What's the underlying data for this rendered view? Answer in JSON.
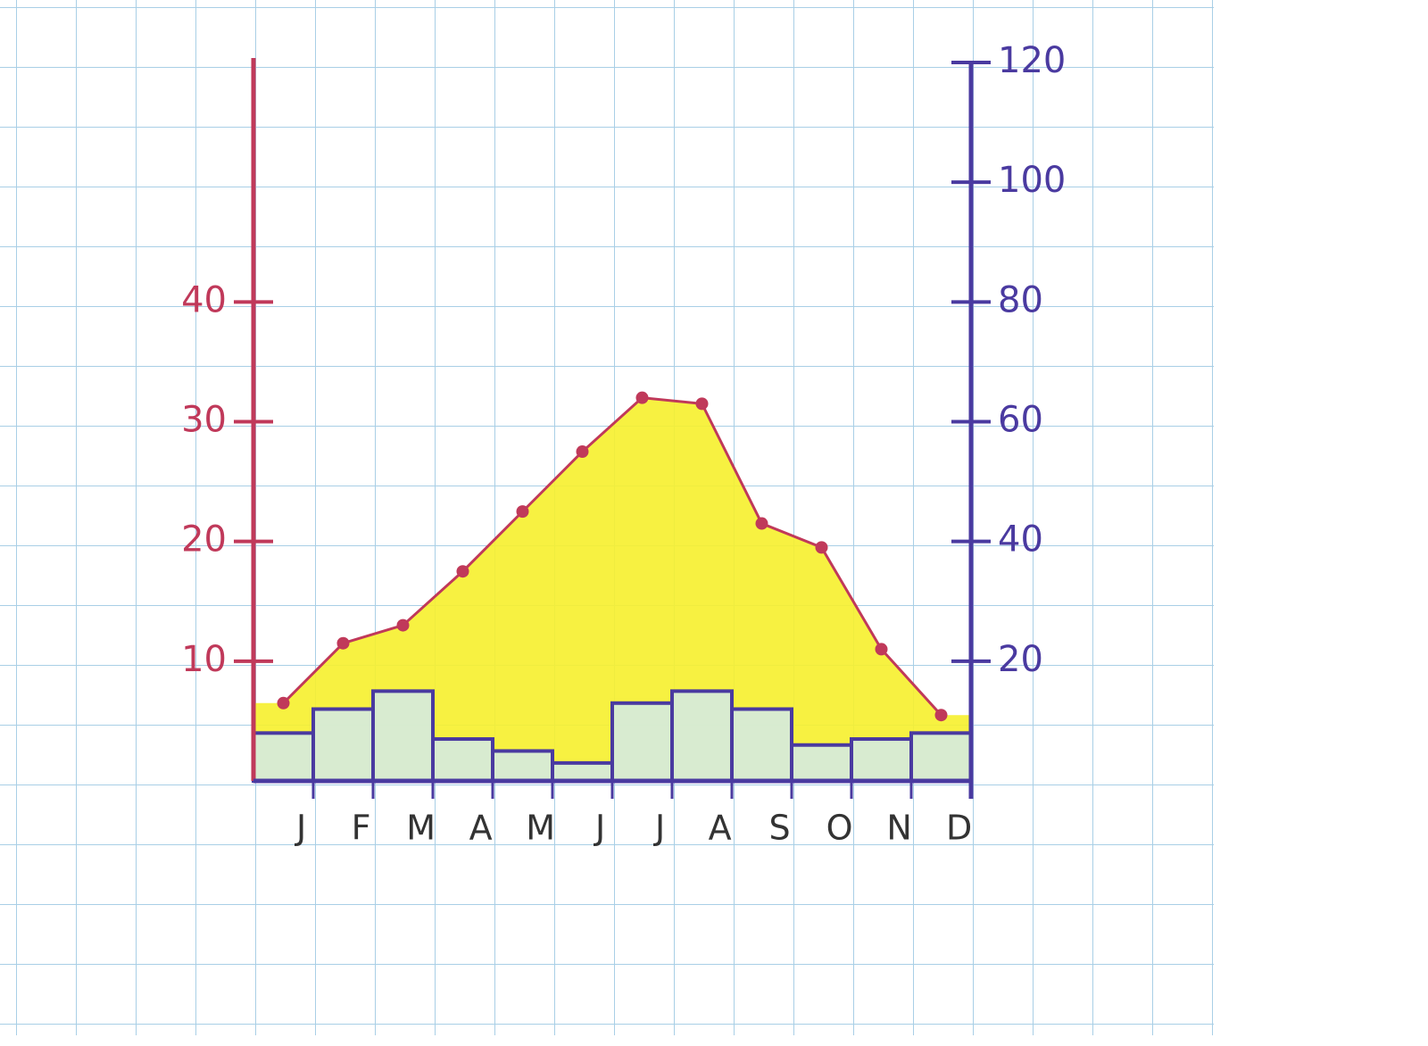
{
  "chart_data": {
    "type": "climograph",
    "categories": [
      "J",
      "F",
      "M",
      "A",
      "M",
      "J",
      "J",
      "A",
      "S",
      "O",
      "N",
      "D"
    ],
    "series": [
      {
        "type": "bar",
        "axis": "y2",
        "color": "#4a3aa0",
        "fill": "#cfeaf4",
        "values": [
          8,
          12,
          15,
          7,
          5,
          3,
          13,
          15,
          12,
          6,
          7,
          8
        ]
      },
      {
        "type": "line",
        "axis": "y",
        "color": "#c0395a",
        "fill": "#f6ef2c",
        "values": [
          6.5,
          11.5,
          13,
          17.5,
          22.5,
          27.5,
          32,
          31.5,
          21.5,
          19.5,
          11,
          5.5
        ]
      }
    ],
    "ylim": [
      0,
      60
    ],
    "yticks": [
      10,
      20,
      30,
      40
    ],
    "y2lim": [
      0,
      120
    ],
    "y2ticks": [
      20,
      40,
      60,
      80,
      100,
      120
    ],
    "left_axis_color": "#c0395a",
    "right_axis_color": "#4a3aa0"
  }
}
